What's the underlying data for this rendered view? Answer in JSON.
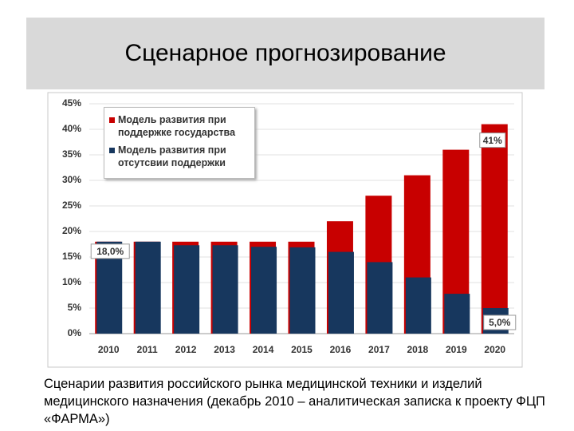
{
  "slide": {
    "title": "Сценарное прогнозирование",
    "caption": "Сценарии развития российского рынка медицинской техники и изделий медицинского назначения (декабрь 2010 – аналитическая записка к проекту ФЦП «ФАРМА»)"
  },
  "chart_data": {
    "type": "bar",
    "categories": [
      "2010",
      "2011",
      "2012",
      "2013",
      "2014",
      "2015",
      "2016",
      "2017",
      "2018",
      "2019",
      "2020"
    ],
    "series": [
      {
        "name": "Модель развития при поддержке государства",
        "color": "#c80000",
        "values": [
          18,
          18,
          18,
          18,
          18,
          18,
          22,
          27,
          31,
          36,
          41
        ],
        "value_labels": [
          null,
          null,
          null,
          null,
          null,
          null,
          null,
          null,
          null,
          null,
          "41%"
        ]
      },
      {
        "name": "Модель развития при отсутсвии поддержки",
        "color": "#17375e",
        "values": [
          18,
          18,
          17.3,
          17.3,
          17,
          16.9,
          16,
          14,
          11,
          7.8,
          5
        ],
        "value_labels": [
          "18,0%",
          null,
          null,
          null,
          null,
          null,
          null,
          null,
          null,
          null,
          "5,0%"
        ]
      }
    ],
    "ylim": [
      0,
      45
    ],
    "yticks": [
      {
        "value": 0,
        "label": "0%"
      },
      {
        "value": 5,
        "label": "5%"
      },
      {
        "value": 10,
        "label": "10%"
      },
      {
        "value": 15,
        "label": "15%"
      },
      {
        "value": 20,
        "label": "20%"
      },
      {
        "value": 25,
        "label": "25%"
      },
      {
        "value": 30,
        "label": "30%"
      },
      {
        "value": 35,
        "label": "35%"
      },
      {
        "value": 40,
        "label": "40%"
      },
      {
        "value": 45,
        "label": "45%"
      }
    ],
    "grid": true,
    "legend": "upper left"
  }
}
